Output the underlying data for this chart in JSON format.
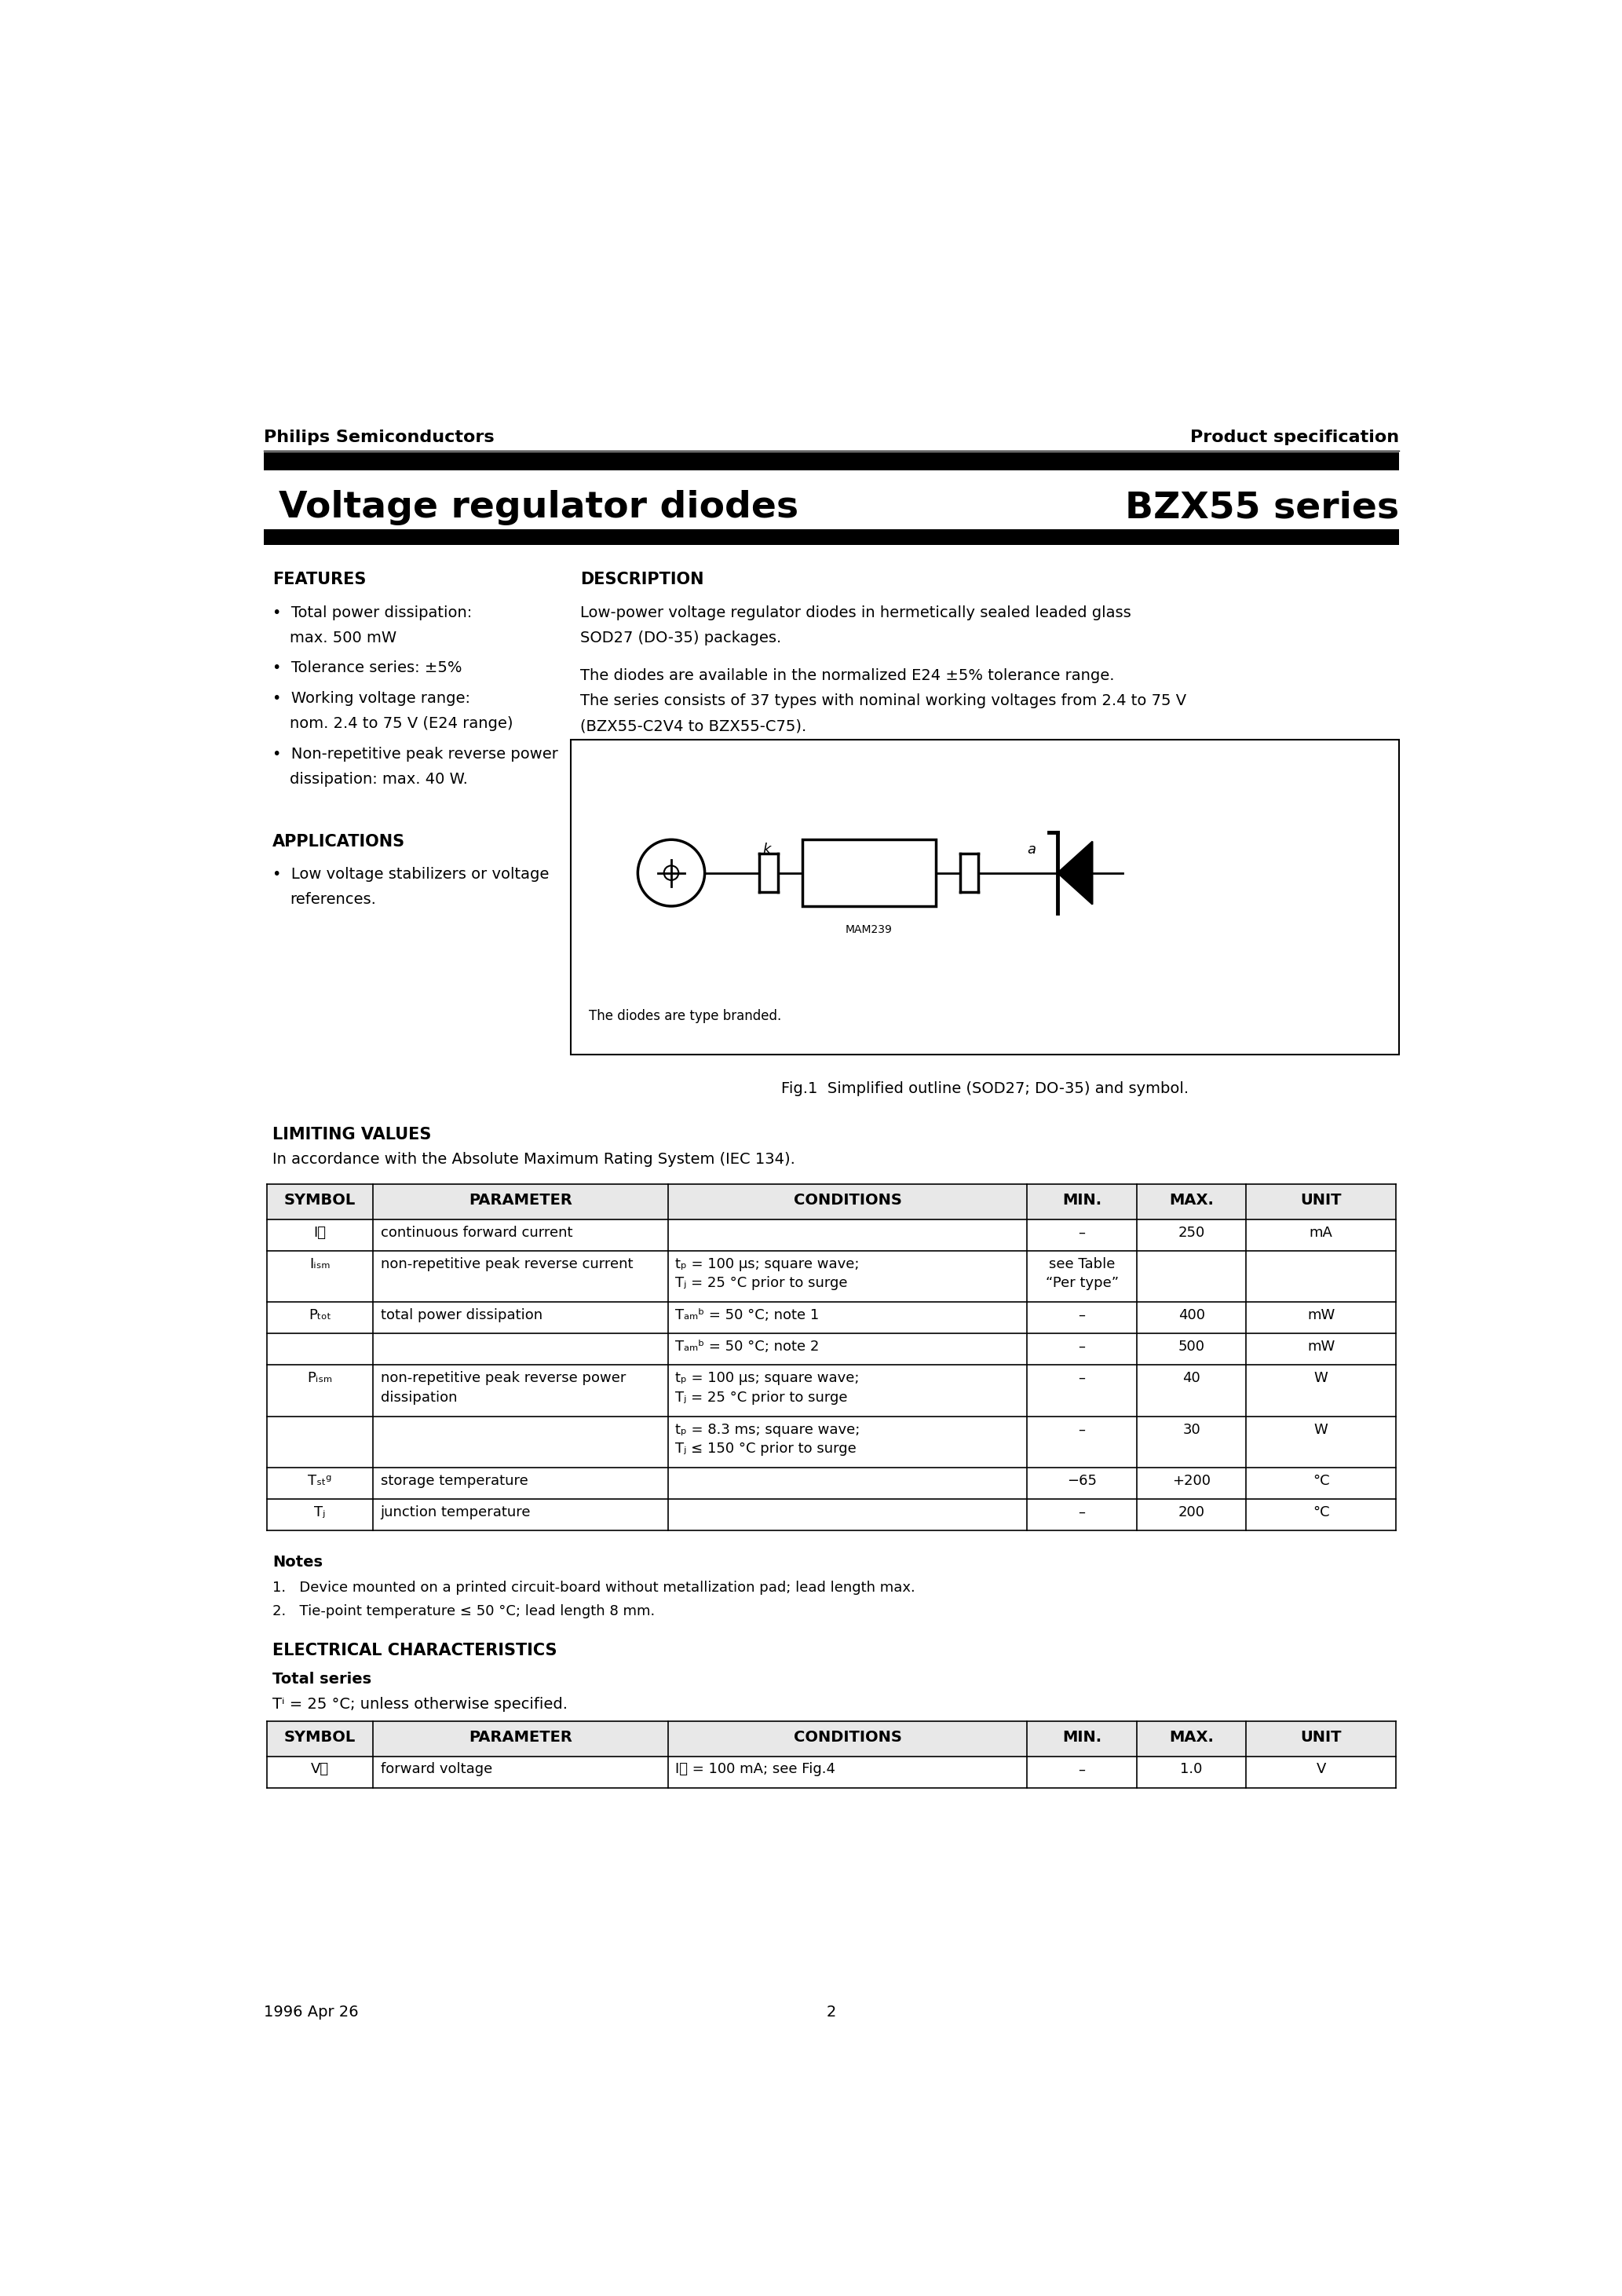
{
  "page_title_left": "Voltage regulator diodes",
  "page_title_right": "BZX55 series",
  "header_left": "Philips Semiconductors",
  "header_right": "Product specification",
  "footer_left": "1996 Apr 26",
  "footer_center": "2",
  "features_title": "FEATURES",
  "applications_title": "APPLICATIONS",
  "description_title": "DESCRIPTION",
  "fig_caption1": "The diodes are type branded.",
  "fig_caption2": "Fig.1  Simplified outline (SOD27; DO-35) and symbol.",
  "limiting_values_title": "LIMITING VALUES",
  "limiting_values_subtitle": "In accordance with the Absolute Maximum Rating System (IEC 134).",
  "lv_headers": [
    "SYMBOL",
    "PARAMETER",
    "CONDITIONS",
    "MIN.",
    "MAX.",
    "UNIT"
  ],
  "notes_title": "Notes",
  "notes": [
    "1.   Device mounted on a printed circuit-board without metallization pad; lead length max.",
    "2.   Tie-point temperature ≤ 50 °C; lead length 8 mm."
  ],
  "elec_char_title": "ELECTRICAL CHARACTERISTICS",
  "elec_char_subtitle1": "Total series",
  "elec_char_subtitle2": "Tⁱ = 25 °C; unless otherwise specified.",
  "ec_headers": [
    "SYMBOL",
    "PARAMETER",
    "CONDITIONS",
    "MIN.",
    "MAX.",
    "UNIT"
  ],
  "bg_color": "#ffffff"
}
